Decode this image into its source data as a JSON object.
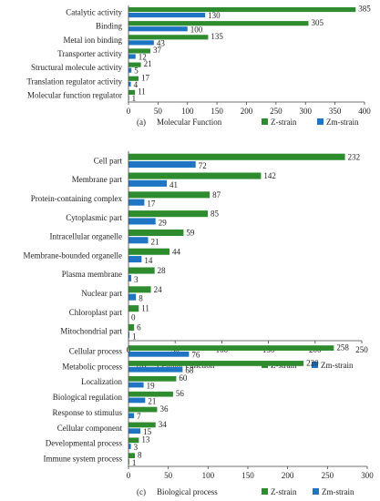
{
  "colors": {
    "z_strain": "#2e8b2e",
    "zm_strain": "#1f74c4"
  },
  "chart_data": [
    {
      "type": "bar",
      "orientation": "horizontal",
      "panel_label": "(a)",
      "title": "Molecular Function",
      "categories": [
        "Catalytic activity",
        "Binding",
        "Metal ion binding",
        "Transporter activity",
        "Structural molecule activity",
        "Translation regulator activity",
        "Molecular function regulator"
      ],
      "series": [
        {
          "name": "Z-strain",
          "values": [
            385,
            305,
            135,
            37,
            21,
            17,
            11
          ]
        },
        {
          "name": "Zm-strain",
          "values": [
            130,
            100,
            43,
            12,
            5,
            4,
            1
          ]
        }
      ],
      "xlim": [
        0,
        400
      ],
      "xticks": [
        0,
        50,
        100,
        150,
        200,
        250,
        300,
        350,
        400
      ],
      "grid": false,
      "legend": "bottom-right"
    },
    {
      "type": "bar",
      "orientation": "horizontal",
      "panel_label": "(b)",
      "title": "Cellular Function",
      "categories": [
        "Cell part",
        "Membrane part",
        "Protein-containing complex",
        "Cytoplasmic part",
        "Intracellular organelle",
        "Membrane-bounded organelle",
        "Plasma membrane",
        "Nuclear part",
        "Chloroplast part",
        "Mitochondrial part"
      ],
      "series": [
        {
          "name": "Z-strain",
          "values": [
            232,
            142,
            87,
            85,
            59,
            44,
            28,
            24,
            11,
            6
          ]
        },
        {
          "name": "Zm-strain",
          "values": [
            72,
            41,
            17,
            29,
            21,
            14,
            3,
            8,
            0,
            1
          ]
        }
      ],
      "xlim": [
        0,
        250
      ],
      "xticks": [
        0,
        50,
        100,
        150,
        200,
        250
      ],
      "grid": false,
      "legend": "bottom-right"
    },
    {
      "type": "bar",
      "orientation": "horizontal",
      "panel_label": "(c)",
      "title": "Biological process",
      "categories": [
        "Cellular process",
        "Metabolic process",
        "Localization",
        "Biological regulation",
        "Response to stimulus",
        "Cellular component",
        "Developmental process",
        "Immune system process"
      ],
      "series": [
        {
          "name": "Z-strain",
          "values": [
            258,
            220,
            60,
            56,
            36,
            34,
            13,
            8
          ]
        },
        {
          "name": "Zm-strain",
          "values": [
            76,
            68,
            19,
            21,
            7,
            15,
            3,
            1
          ]
        }
      ],
      "xlim": [
        0,
        300
      ],
      "xticks": [
        0,
        50,
        100,
        150,
        200,
        250,
        300
      ],
      "grid": false,
      "legend": "bottom-right"
    }
  ]
}
